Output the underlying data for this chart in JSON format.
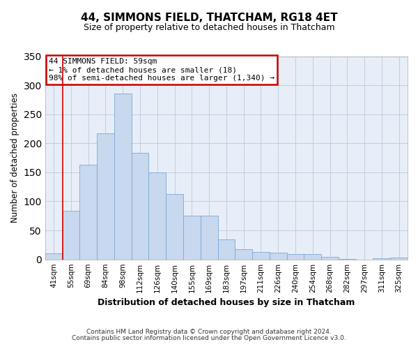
{
  "title1": "44, SIMMONS FIELD, THATCHAM, RG18 4ET",
  "title2": "Size of property relative to detached houses in Thatcham",
  "xlabel": "Distribution of detached houses by size in Thatcham",
  "ylabel": "Number of detached properties",
  "bin_labels": [
    "41sqm",
    "55sqm",
    "69sqm",
    "84sqm",
    "98sqm",
    "112sqm",
    "126sqm",
    "140sqm",
    "155sqm",
    "169sqm",
    "183sqm",
    "197sqm",
    "211sqm",
    "226sqm",
    "240sqm",
    "254sqm",
    "268sqm",
    "282sqm",
    "297sqm",
    "311sqm",
    "325sqm"
  ],
  "bar_heights": [
    10,
    84,
    163,
    217,
    286,
    183,
    150,
    113,
    75,
    75,
    35,
    18,
    13,
    12,
    9,
    9,
    5,
    1,
    0,
    2,
    3
  ],
  "bar_color": "#c8d8ee",
  "bar_edge_color": "#7aa8d4",
  "vline_x": 0.5,
  "vline_color": "#cc0000",
  "ylim": [
    0,
    350
  ],
  "yticks": [
    0,
    50,
    100,
    150,
    200,
    250,
    300,
    350
  ],
  "annotation_line1": "44 SIMMONS FIELD: 59sqm",
  "annotation_line2": "← 1% of detached houses are smaller (18)",
  "annotation_line3": "98% of semi-detached houses are larger (1,340) →",
  "annotation_box_color": "#ffffff",
  "annotation_box_edge": "#cc0000",
  "footer1": "Contains HM Land Registry data © Crown copyright and database right 2024.",
  "footer2": "Contains public sector information licensed under the Open Government Licence v3.0.",
  "fig_background": "#ffffff",
  "plot_background": "#e8eef8",
  "grid_color": "#c0cce0"
}
